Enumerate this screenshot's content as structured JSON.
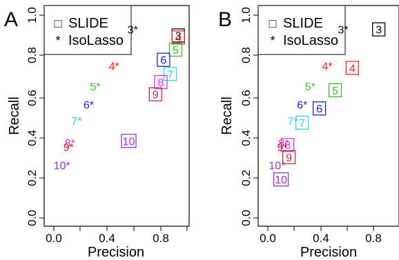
{
  "chart_data": [
    {
      "panel_label": "A",
      "type": "scatter",
      "xlabel": "Precision",
      "ylabel": "Recall",
      "xlim": [
        0,
        1
      ],
      "ylim": [
        0,
        1
      ],
      "xticks": [
        "0.0",
        "0.4",
        "0.8"
      ],
      "yticks": [
        "0.0",
        "0.2",
        "0.4",
        "0.6",
        "0.8",
        "1.0"
      ],
      "legend": {
        "position": "top-left",
        "entries": [
          {
            "symbol": "□",
            "label": "SLIDE"
          },
          {
            "symbol": "*",
            "label": "IsoLasso"
          }
        ]
      },
      "series": [
        {
          "name": "SLIDE",
          "marker": "boxed-label",
          "points": [
            {
              "label": "3",
              "x": 0.93,
              "y": 0.9,
              "color": "#000000"
            },
            {
              "label": "4",
              "x": 0.93,
              "y": 0.89,
              "color": "#e8231c"
            },
            {
              "label": "5",
              "x": 0.91,
              "y": 0.83,
              "color": "#3bb82c"
            },
            {
              "label": "6",
              "x": 0.82,
              "y": 0.78,
              "color": "#1a21d4"
            },
            {
              "label": "7",
              "x": 0.87,
              "y": 0.71,
              "color": "#2ad5e8"
            },
            {
              "label": "8",
              "x": 0.8,
              "y": 0.67,
              "color": "#e72bd9"
            },
            {
              "label": "9",
              "x": 0.76,
              "y": 0.61,
              "color": "#b2303a"
            },
            {
              "label": "10",
              "x": 0.56,
              "y": 0.38,
              "color": "#9a33cc"
            }
          ]
        },
        {
          "name": "IsoLasso",
          "marker": "star-label",
          "points": [
            {
              "label": "3",
              "x": 0.59,
              "y": 0.93,
              "color": "#000000"
            },
            {
              "label": "4",
              "x": 0.45,
              "y": 0.75,
              "color": "#e8231c"
            },
            {
              "label": "5",
              "x": 0.31,
              "y": 0.65,
              "color": "#3bb82c"
            },
            {
              "label": "6",
              "x": 0.26,
              "y": 0.56,
              "color": "#1a21d4"
            },
            {
              "label": "7",
              "x": 0.17,
              "y": 0.48,
              "color": "#2ad5e8"
            },
            {
              "label": "8",
              "x": 0.12,
              "y": 0.37,
              "color": "#e72bd9"
            },
            {
              "label": "9",
              "x": 0.11,
              "y": 0.35,
              "color": "#b2303a"
            },
            {
              "label": "10",
              "x": 0.06,
              "y": 0.26,
              "color": "#9a33cc"
            }
          ]
        }
      ]
    },
    {
      "panel_label": "B",
      "type": "scatter",
      "xlabel": "Precision",
      "ylabel": "Recall",
      "xlim": [
        0,
        1
      ],
      "ylim": [
        0,
        1
      ],
      "xticks": [
        "0.0",
        "0.4",
        "0.8"
      ],
      "yticks": [
        "0.0",
        "0.2",
        "0.4",
        "0.6",
        "0.8",
        "1.0"
      ],
      "legend": {
        "position": "top-left",
        "entries": [
          {
            "symbol": "□",
            "label": "SLIDE"
          },
          {
            "symbol": "*",
            "label": "IsoLasso"
          }
        ]
      },
      "series": [
        {
          "name": "SLIDE",
          "marker": "boxed-label",
          "points": [
            {
              "label": "3",
              "x": 0.84,
              "y": 0.93,
              "color": "#000000"
            },
            {
              "label": "4",
              "x": 0.64,
              "y": 0.74,
              "color": "#e8231c"
            },
            {
              "label": "5",
              "x": 0.51,
              "y": 0.63,
              "color": "#3bb82c"
            },
            {
              "label": "6",
              "x": 0.39,
              "y": 0.54,
              "color": "#1a21d4"
            },
            {
              "label": "7",
              "x": 0.26,
              "y": 0.47,
              "color": "#2ad5e8"
            },
            {
              "label": "8",
              "x": 0.15,
              "y": 0.36,
              "color": "#e72bd9"
            },
            {
              "label": "9",
              "x": 0.16,
              "y": 0.3,
              "color": "#b2303a"
            },
            {
              "label": "10",
              "x": 0.1,
              "y": 0.19,
              "color": "#9a33cc"
            }
          ]
        },
        {
          "name": "IsoLasso",
          "marker": "star-label",
          "points": [
            {
              "label": "3",
              "x": 0.57,
              "y": 0.93,
              "color": "#000000"
            },
            {
              "label": "4",
              "x": 0.45,
              "y": 0.75,
              "color": "#e8231c"
            },
            {
              "label": "5",
              "x": 0.32,
              "y": 0.65,
              "color": "#3bb82c"
            },
            {
              "label": "6",
              "x": 0.26,
              "y": 0.56,
              "color": "#1a21d4"
            },
            {
              "label": "7",
              "x": 0.19,
              "y": 0.48,
              "color": "#2ad5e8"
            },
            {
              "label": "8",
              "x": 0.12,
              "y": 0.37,
              "color": "#e72bd9"
            },
            {
              "label": "9",
              "x": 0.11,
              "y": 0.35,
              "color": "#b2303a"
            },
            {
              "label": "10",
              "x": 0.07,
              "y": 0.26,
              "color": "#9a33cc"
            }
          ]
        }
      ]
    }
  ]
}
